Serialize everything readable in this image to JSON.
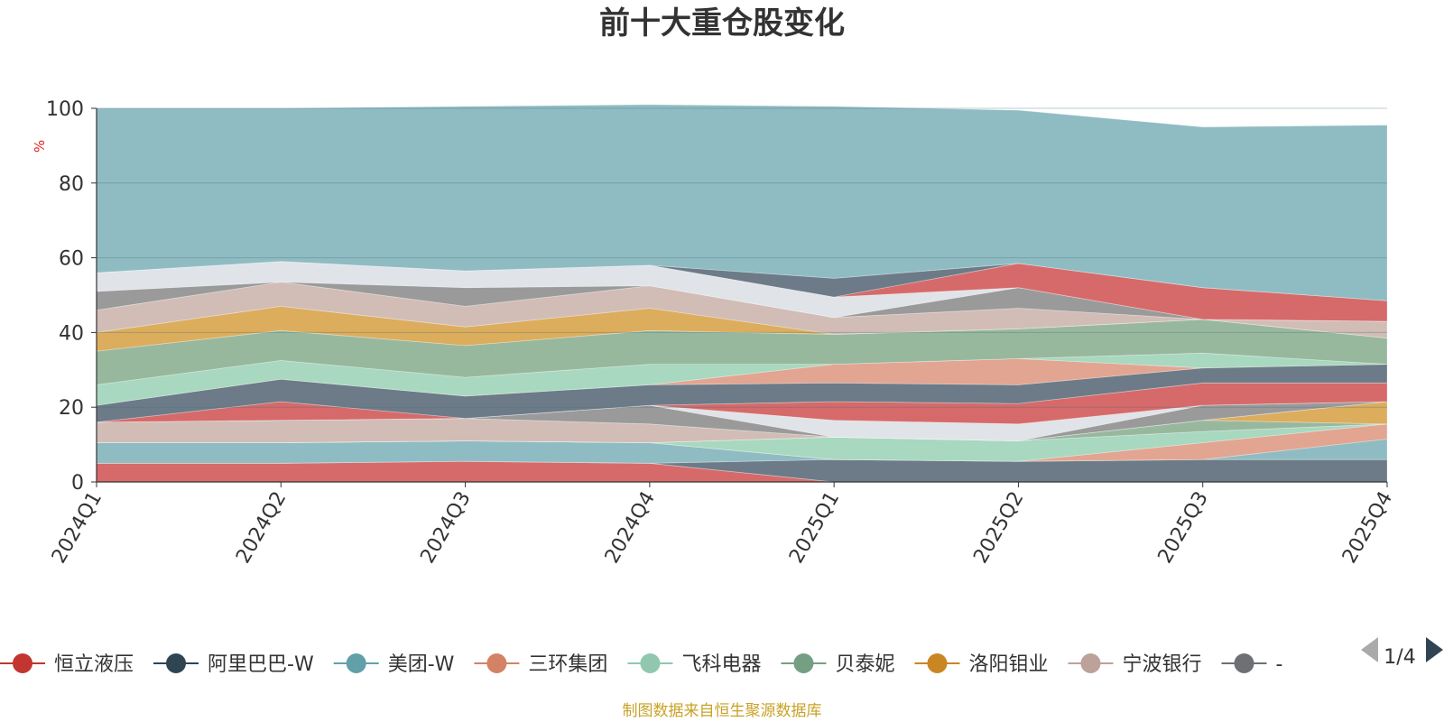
{
  "chart_data": {
    "type": "area",
    "title": "前十大重仓股变化",
    "ylabel": "%",
    "ylim": [
      0,
      100
    ],
    "yticks": [
      0,
      20,
      40,
      60,
      80,
      100
    ],
    "categories": [
      "2024Q1",
      "2024Q2",
      "2024Q3",
      "2024Q4",
      "2025Q1",
      "2025Q2",
      "2025Q3",
      "2025Q4"
    ],
    "grid": true,
    "stacked": true,
    "legend_position": "bottom",
    "series": [
      {
        "name": "恒立液压",
        "color": "#d66a6a",
        "values": [
          5,
          5,
          5.5,
          5,
          0,
          0,
          0,
          0
        ]
      },
      {
        "name": "阿里巴巴-W",
        "color": "#6c7b87",
        "values": [
          0,
          0,
          0,
          0,
          6,
          5.5,
          6,
          6
        ]
      },
      {
        "name": "美团-W",
        "color": "#8fbcc2",
        "values": [
          5.5,
          5.5,
          5.5,
          5.5,
          0,
          0,
          0,
          5.5
        ]
      },
      {
        "name": "三环集团",
        "color": "#e2a591",
        "values": [
          0,
          0,
          0,
          0,
          0,
          0,
          4.5,
          4
        ]
      },
      {
        "name": "飞科电器",
        "color": "#a8d8bf",
        "values": [
          0,
          0,
          0,
          0,
          6,
          5.5,
          3,
          0
        ]
      },
      {
        "name": "贝泰妮",
        "color": "#98b89e",
        "values": [
          0,
          0,
          0,
          0,
          0,
          0,
          3,
          0
        ]
      },
      {
        "name": "洛阳钼业",
        "color": "#dcad5c",
        "values": [
          0,
          0,
          0,
          0,
          0,
          0,
          0,
          6
        ]
      },
      {
        "name": "宁波银行",
        "color": "#d1bdb6",
        "values": [
          5.5,
          6,
          6,
          5,
          0,
          0,
          0,
          0
        ]
      },
      {
        "name": "",
        "color": "#9a9a9a",
        "values": [
          0,
          0,
          0,
          5,
          0,
          0,
          4,
          0
        ]
      },
      {
        "name": "",
        "color": "#e0e3e8",
        "values": [
          0,
          0,
          0,
          0,
          4.5,
          4.5,
          0,
          0
        ]
      },
      {
        "name": "",
        "color": "#d66a6a",
        "values": [
          0,
          5,
          0,
          0,
          5,
          5.5,
          6,
          5
        ]
      },
      {
        "name": "",
        "color": "#6c7b87",
        "values": [
          4.5,
          6,
          6,
          5.5,
          5,
          5,
          4,
          5
        ]
      },
      {
        "name": "",
        "color": "#e2a591",
        "values": [
          0,
          0,
          0,
          0,
          5,
          7,
          0,
          0
        ]
      },
      {
        "name": "",
        "color": "#a8d8bf",
        "values": [
          5.5,
          5,
          5,
          5.5,
          0,
          0,
          4,
          0
        ]
      },
      {
        "name": "",
        "color": "#98b89e",
        "values": [
          9,
          8,
          8.5,
          9,
          8,
          8,
          9,
          7
        ]
      },
      {
        "name": "",
        "color": "#dcad5c",
        "values": [
          5,
          6.5,
          5,
          6,
          0,
          0,
          0,
          0
        ]
      },
      {
        "name": "",
        "color": "#d1bdb6",
        "values": [
          6,
          6.5,
          5.5,
          6,
          4.5,
          5.5,
          0,
          4.5
        ]
      },
      {
        "name": "",
        "color": "#9a9a9a",
        "values": [
          5,
          0,
          5,
          0,
          0,
          5.5,
          0,
          0
        ]
      },
      {
        "name": "",
        "color": "#e0e3e8",
        "values": [
          5,
          5.5,
          4.5,
          5.5,
          5.5,
          0,
          0,
          0
        ]
      },
      {
        "name": "",
        "color": "#d66a6a",
        "values": [
          0,
          0,
          0,
          0,
          0,
          6.5,
          8.5,
          5.5
        ]
      },
      {
        "name": "",
        "color": "#6c7b87",
        "values": [
          0,
          0,
          0,
          0,
          5,
          0,
          0,
          0
        ]
      },
      {
        "name": "",
        "color": "#8fbcc2",
        "values": [
          44,
          41,
          44,
          43,
          46,
          41,
          43,
          47
        ]
      }
    ]
  },
  "legend": {
    "items": [
      {
        "label": "恒立液压",
        "color": "#c23531"
      },
      {
        "label": "阿里巴巴-W",
        "color": "#2f4554"
      },
      {
        "label": "美团-W",
        "color": "#61a0a8"
      },
      {
        "label": "三环集团",
        "color": "#d48265"
      },
      {
        "label": "飞科电器",
        "color": "#91c7ae"
      },
      {
        "label": "贝泰妮",
        "color": "#749f83"
      },
      {
        "label": "洛阳钼业",
        "color": "#ca8622"
      },
      {
        "label": "宁波银行",
        "color": "#bda29a"
      },
      {
        "label": "-",
        "color": "#6e7074"
      }
    ],
    "page": "1/4"
  },
  "footer": "制图数据来自恒生聚源数据库"
}
